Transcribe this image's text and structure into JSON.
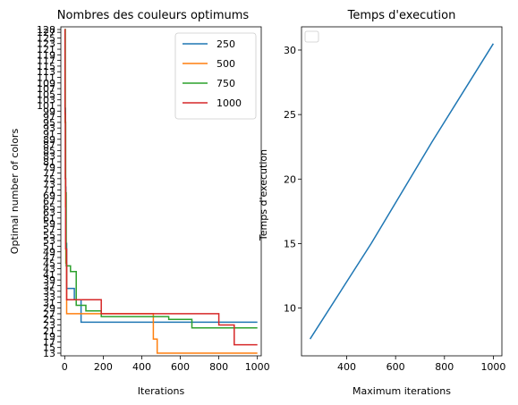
{
  "chart_data": [
    {
      "type": "line",
      "title": "Nombres des couleurs optimums",
      "xlabel": "Iterations",
      "ylabel": "Optimal number of colors",
      "xlim": [
        -20,
        1020
      ],
      "xticks": [
        0,
        200,
        400,
        600,
        800,
        1000
      ],
      "yticks_visible": [
        "13",
        "15",
        "17",
        "19",
        "21",
        "23",
        "25",
        "27",
        "29",
        "31",
        "33",
        "35",
        "37",
        "39",
        "41",
        "43",
        "45",
        "47",
        "49",
        "51",
        "53",
        "55",
        "57",
        "59",
        "61",
        "63",
        "65",
        "67",
        "69",
        "71",
        "73",
        "75",
        "77",
        "79",
        "81",
        "83",
        "85",
        "87",
        "89",
        "91",
        "93",
        "95",
        "97",
        "99",
        "101",
        "103",
        "105",
        "107",
        "109",
        "111",
        "113",
        "115",
        "117",
        "119",
        "121",
        "123",
        "125",
        "127",
        "128"
      ],
      "legend": {
        "location": "top-right"
      },
      "series": [
        {
          "name": "250",
          "color": "#1f77b4",
          "steps": [
            [
              0,
              128
            ],
            [
              2,
              100
            ],
            [
              4,
              72
            ],
            [
              6,
              52
            ],
            [
              10,
              36
            ],
            [
              50,
              32
            ],
            [
              85,
              24
            ],
            [
              1000,
              24
            ]
          ]
        },
        {
          "name": "500",
          "color": "#ff7f0e",
          "steps": [
            [
              0,
              128
            ],
            [
              2,
              95
            ],
            [
              4,
              65
            ],
            [
              6,
              45
            ],
            [
              10,
              27
            ],
            [
              420,
              27
            ],
            [
              460,
              18
            ],
            [
              480,
              13
            ],
            [
              1000,
              13
            ]
          ]
        },
        {
          "name": "750",
          "color": "#2ca02c",
          "steps": [
            [
              0,
              128
            ],
            [
              3,
              95
            ],
            [
              5,
              70
            ],
            [
              8,
              44
            ],
            [
              30,
              42
            ],
            [
              60,
              30
            ],
            [
              110,
              28
            ],
            [
              190,
              26
            ],
            [
              540,
              25
            ],
            [
              660,
              22
            ],
            [
              1000,
              22
            ]
          ]
        },
        {
          "name": "1000",
          "color": "#d62728",
          "steps": [
            [
              0,
              128
            ],
            [
              2,
              98
            ],
            [
              3,
              75
            ],
            [
              5,
              50
            ],
            [
              10,
              32
            ],
            [
              185,
              32
            ],
            [
              190,
              27
            ],
            [
              785,
              27
            ],
            [
              800,
              23
            ],
            [
              880,
              16
            ],
            [
              1000,
              16
            ]
          ]
        }
      ]
    },
    {
      "type": "line",
      "title": "Temps d'execution",
      "xlabel": "Maximum iterations",
      "ylabel": "Temps d'execution",
      "xticks": [
        400,
        600,
        800,
        1000
      ],
      "yticks": [
        10,
        15,
        20,
        25,
        30
      ],
      "xlim": [
        215,
        1035
      ],
      "ylim": [
        6.3,
        31.8
      ],
      "legend": {
        "location": "top-left",
        "empty": true
      },
      "series": [
        {
          "color": "#1f77b4",
          "x": [
            250,
            500,
            750,
            1000
          ],
          "y": [
            7.6,
            15.0,
            22.9,
            30.5
          ]
        }
      ]
    }
  ]
}
